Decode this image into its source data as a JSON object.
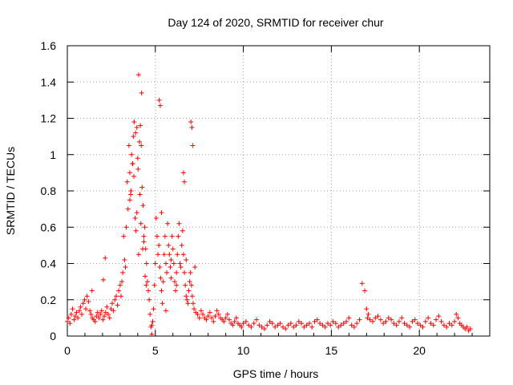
{
  "chart_data": {
    "type": "scatter",
    "title": "Day 124 of 2020, SRMTID for receiver chur",
    "xlabel": "GPS time / hours",
    "ylabel": "SRMTID / TECUs",
    "xlim": [
      0,
      24
    ],
    "ylim": [
      0,
      1.6
    ],
    "xticks": [
      0,
      5,
      10,
      15,
      20
    ],
    "xtick_labels": [
      "0",
      "5",
      "10",
      "15",
      "20"
    ],
    "yticks": [
      0,
      0.2,
      0.4,
      0.6,
      0.8,
      1,
      1.2,
      1.4,
      1.6
    ],
    "ytick_labels": [
      "0",
      "0.2",
      "0.4",
      "0.6",
      "0.8",
      "1",
      "1.2",
      "1.4",
      "1.6"
    ],
    "grid": true,
    "marker": "+",
    "series": [
      {
        "name": "SRMTID",
        "color": "#ff0000",
        "x": [
          0.0,
          0.08,
          0.15,
          0.22,
          0.3,
          0.38,
          0.45,
          0.52,
          0.6,
          0.68,
          0.75,
          0.82,
          0.9,
          0.98,
          1.05,
          1.12,
          1.2,
          1.28,
          1.35,
          1.42,
          1.5,
          1.58,
          1.65,
          1.72,
          1.8,
          1.88,
          1.95,
          2.02,
          2.1,
          2.18,
          2.25,
          2.32,
          2.4,
          2.48,
          2.55,
          2.62,
          2.7,
          2.78,
          2.85,
          2.92,
          3.0,
          3.05,
          3.1,
          3.15,
          3.2,
          3.25,
          3.3,
          3.35,
          3.4,
          3.45,
          3.5,
          3.55,
          3.6,
          3.65,
          3.7,
          3.75,
          3.8,
          3.85,
          3.9,
          3.95,
          4.0,
          4.05,
          4.1,
          4.15,
          4.2,
          4.25,
          4.3,
          4.35,
          4.4,
          4.45,
          4.5,
          4.55,
          4.6,
          4.65,
          4.7,
          4.75,
          4.8,
          4.85,
          4.9,
          4.95,
          5.0,
          5.05,
          5.1,
          5.15,
          5.2,
          5.25,
          5.3,
          5.35,
          5.4,
          5.45,
          5.5,
          5.55,
          5.6,
          5.65,
          5.7,
          5.75,
          5.8,
          5.85,
          5.9,
          5.95,
          6.0,
          6.05,
          6.1,
          6.15,
          6.2,
          6.25,
          6.3,
          6.35,
          6.4,
          6.45,
          6.5,
          6.55,
          6.6,
          6.65,
          6.7,
          6.75,
          6.8,
          6.85,
          6.9,
          6.95,
          7.0,
          7.05,
          7.1,
          7.15,
          7.2,
          7.3,
          7.4,
          7.5,
          7.6,
          7.7,
          7.8,
          7.9,
          8.0,
          8.1,
          8.2,
          8.3,
          8.4,
          8.5,
          8.6,
          8.7,
          8.8,
          8.9,
          9.0,
          9.1,
          9.2,
          9.3,
          9.4,
          9.5,
          9.6,
          9.7,
          9.8,
          9.9,
          10.0,
          10.15,
          10.3,
          10.45,
          10.6,
          10.75,
          10.9,
          11.05,
          11.2,
          11.35,
          11.5,
          11.65,
          11.8,
          11.95,
          12.1,
          12.25,
          12.4,
          12.55,
          12.7,
          12.85,
          13.0,
          13.15,
          13.3,
          13.45,
          13.6,
          13.75,
          13.9,
          14.05,
          14.2,
          14.35,
          14.5,
          14.65,
          14.8,
          14.95,
          15.1,
          15.25,
          15.4,
          15.55,
          15.7,
          15.85,
          16.0,
          16.15,
          16.3,
          16.45,
          16.6,
          16.75,
          16.9,
          17.0,
          17.05,
          17.1,
          17.2,
          17.35,
          17.5,
          17.65,
          17.8,
          17.95,
          18.1,
          18.25,
          18.4,
          18.55,
          18.7,
          18.85,
          19.0,
          19.15,
          19.3,
          19.45,
          19.6,
          19.75,
          19.9,
          20.05,
          20.2,
          20.35,
          20.5,
          20.65,
          20.8,
          20.95,
          21.1,
          21.25,
          21.4,
          21.55,
          21.7,
          21.85,
          22.0,
          22.1,
          22.2,
          22.3,
          22.4,
          22.5,
          22.6,
          22.7,
          22.8,
          22.9,
          3.55,
          3.62,
          3.72,
          3.78,
          3.88,
          3.95,
          4.02,
          4.12,
          4.18,
          4.28,
          4.35,
          4.42,
          4.48,
          5.22,
          5.28,
          5.35,
          6.6,
          6.65,
          7.02,
          7.08,
          2.15,
          1.4,
          2.05,
          4.05,
          4.22,
          4.8,
          5.6,
          5.9,
          6.2,
          6.75,
          7.12,
          7.25
        ],
        "y": [
          0.08,
          0.1,
          0.07,
          0.12,
          0.15,
          0.09,
          0.11,
          0.13,
          0.1,
          0.14,
          0.16,
          0.12,
          0.18,
          0.2,
          0.15,
          0.22,
          0.19,
          0.14,
          0.12,
          0.1,
          0.09,
          0.08,
          0.11,
          0.13,
          0.1,
          0.12,
          0.14,
          0.09,
          0.11,
          0.13,
          0.16,
          0.12,
          0.1,
          0.15,
          0.18,
          0.14,
          0.2,
          0.22,
          0.17,
          0.25,
          0.28,
          0.22,
          0.3,
          0.35,
          0.55,
          0.42,
          0.38,
          0.6,
          0.85,
          0.7,
          1.05,
          0.9,
          0.78,
          1.0,
          0.95,
          1.1,
          1.18,
          0.65,
          0.58,
          1.15,
          0.98,
          0.45,
          1.07,
          1.16,
          1.05,
          0.82,
          0.72,
          0.55,
          0.6,
          0.48,
          0.4,
          0.3,
          0.25,
          0.2,
          0.12,
          0.05,
          0.01,
          0.08,
          0.15,
          0.28,
          0.4,
          0.65,
          0.55,
          0.45,
          0.5,
          0.38,
          0.32,
          0.25,
          0.18,
          0.3,
          0.45,
          0.55,
          0.4,
          0.35,
          0.62,
          0.5,
          0.45,
          0.38,
          0.42,
          0.55,
          0.48,
          0.4,
          0.3,
          0.25,
          0.35,
          0.45,
          0.55,
          0.62,
          0.4,
          0.38,
          0.5,
          0.58,
          0.45,
          0.35,
          0.28,
          0.22,
          0.2,
          0.18,
          0.25,
          0.3,
          0.35,
          0.28,
          0.22,
          0.18,
          0.15,
          0.13,
          0.12,
          0.1,
          0.14,
          0.12,
          0.1,
          0.09,
          0.11,
          0.13,
          0.1,
          0.08,
          0.11,
          0.14,
          0.12,
          0.1,
          0.09,
          0.08,
          0.1,
          0.12,
          0.09,
          0.07,
          0.06,
          0.08,
          0.1,
          0.07,
          0.06,
          0.05,
          0.07,
          0.08,
          0.06,
          0.05,
          0.07,
          0.09,
          0.06,
          0.05,
          0.04,
          0.06,
          0.08,
          0.07,
          0.05,
          0.06,
          0.07,
          0.05,
          0.04,
          0.06,
          0.07,
          0.05,
          0.06,
          0.08,
          0.07,
          0.05,
          0.06,
          0.07,
          0.05,
          0.08,
          0.09,
          0.07,
          0.06,
          0.05,
          0.07,
          0.06,
          0.08,
          0.07,
          0.05,
          0.06,
          0.07,
          0.08,
          0.1,
          0.06,
          0.05,
          0.07,
          0.09,
          0.29,
          0.25,
          0.15,
          0.1,
          0.12,
          0.09,
          0.08,
          0.1,
          0.11,
          0.09,
          0.07,
          0.08,
          0.1,
          0.09,
          0.07,
          0.06,
          0.08,
          0.1,
          0.07,
          0.06,
          0.05,
          0.08,
          0.09,
          0.07,
          0.06,
          0.05,
          0.08,
          0.1,
          0.07,
          0.06,
          0.09,
          0.11,
          0.08,
          0.06,
          0.05,
          0.07,
          0.06,
          0.08,
          0.12,
          0.1,
          0.07,
          0.06,
          0.05,
          0.04,
          0.05,
          0.03,
          0.04,
          0.75,
          0.8,
          0.95,
          0.88,
          1.12,
          0.68,
          0.92,
          0.78,
          0.62,
          0.48,
          0.52,
          0.33,
          0.28,
          1.3,
          1.27,
          0.68,
          0.9,
          0.85,
          1.18,
          1.15,
          0.43,
          0.25,
          0.31,
          1.44,
          1.34,
          0.06,
          0.14,
          0.32,
          0.28,
          0.42,
          1.05,
          0.38
        ]
      }
    ]
  }
}
